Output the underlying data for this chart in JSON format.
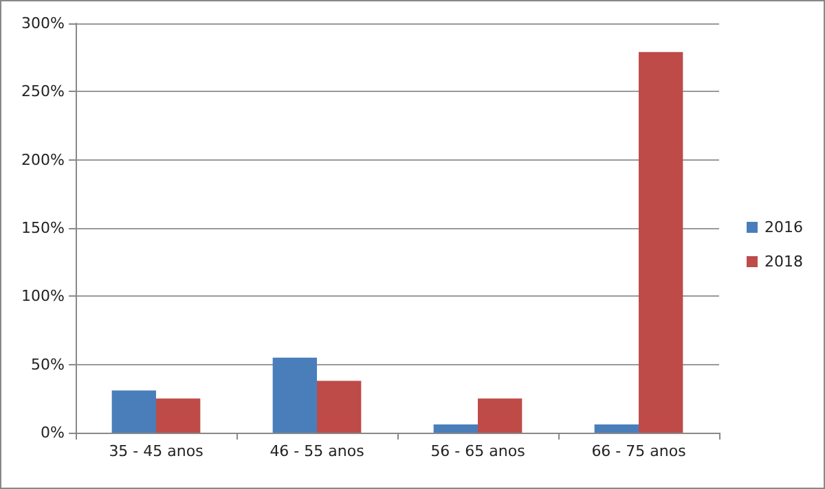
{
  "chart_data": {
    "type": "bar",
    "categories": [
      "35 - 45 anos",
      "46 - 55 anos",
      "56 - 65 anos",
      "66 - 75 anos"
    ],
    "series": [
      {
        "name": "2016",
        "color": "#4a7ebb",
        "values": [
          31,
          55,
          6,
          6
        ]
      },
      {
        "name": "2018",
        "color": "#be4b48",
        "values": [
          25,
          38,
          25,
          279
        ]
      }
    ],
    "ylim": [
      0,
      300
    ],
    "yticks": [
      {
        "value": 0,
        "label": "0%"
      },
      {
        "value": 50,
        "label": "50%"
      },
      {
        "value": 100,
        "label": "100%"
      },
      {
        "value": 150,
        "label": "150%"
      },
      {
        "value": 200,
        "label": "200%"
      },
      {
        "value": 250,
        "label": "250%"
      },
      {
        "value": 300,
        "label": "300%"
      }
    ],
    "grid": "y",
    "legend": "right"
  }
}
